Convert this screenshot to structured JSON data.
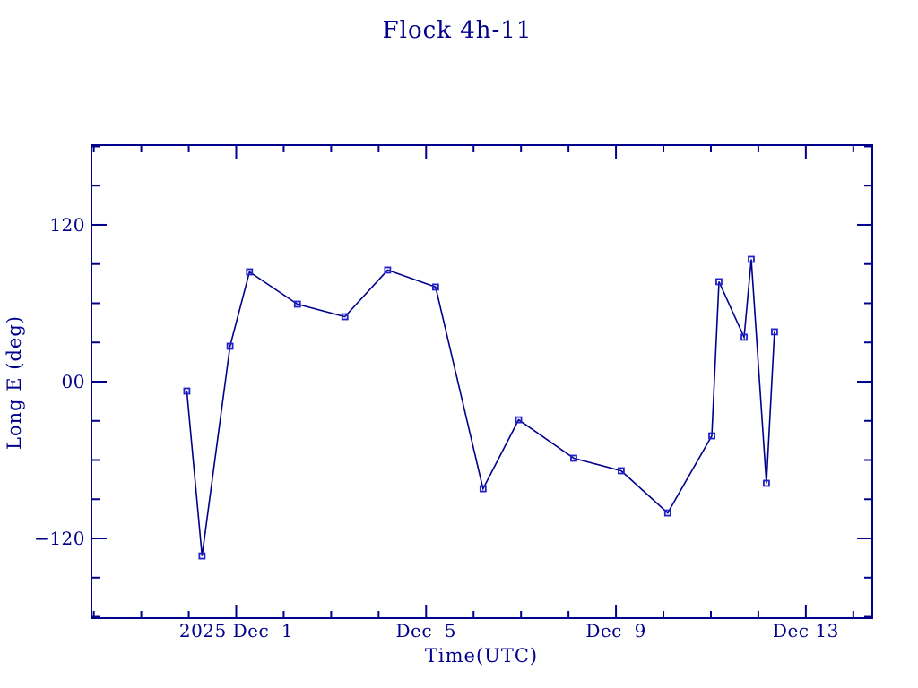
{
  "page": {
    "background": "#ffffff"
  },
  "colors": {
    "frame": "#00008B",
    "text": "#00008B",
    "line": "#00008B",
    "marker": "#2222CC"
  },
  "chart_data": {
    "type": "line",
    "title": "Flock 4h-11",
    "xlabel": "Time(UTC)",
    "ylabel": "Long E (deg)",
    "x_units": "days since 2025 Dec 1 00:00 (UTC)",
    "y_units": "degrees longitude East",
    "points": [
      {
        "x": -1.04,
        "y": -7.2
      },
      {
        "x": -0.72,
        "y": -133.4
      },
      {
        "x": -0.13,
        "y": 27.1
      },
      {
        "x": 0.28,
        "y": 84.0
      },
      {
        "x": 1.29,
        "y": 59.3
      },
      {
        "x": 2.29,
        "y": 49.7
      },
      {
        "x": 3.19,
        "y": 85.4
      },
      {
        "x": 4.2,
        "y": 72.4
      },
      {
        "x": 5.2,
        "y": -82.0
      },
      {
        "x": 5.95,
        "y": -29.2
      },
      {
        "x": 7.11,
        "y": -58.6
      },
      {
        "x": 8.11,
        "y": -68.2
      },
      {
        "x": 9.09,
        "y": -100.5
      },
      {
        "x": 10.02,
        "y": -41.5
      },
      {
        "x": 10.17,
        "y": 76.5
      },
      {
        "x": 10.7,
        "y": 34.0
      },
      {
        "x": 10.85,
        "y": 93.6
      },
      {
        "x": 11.17,
        "y": -77.8
      },
      {
        "x": 11.34,
        "y": 38.1
      }
    ],
    "xlim": [
      -3.05,
      13.4
    ],
    "ylim": [
      -181,
      181
    ],
    "x_major_ticks": [
      {
        "value": 0,
        "label": "2025 Dec  1"
      },
      {
        "value": 4,
        "label": "Dec  5"
      },
      {
        "value": 8,
        "label": "Dec  9"
      },
      {
        "value": 12,
        "label": "Dec 13"
      }
    ],
    "x_minor_tick_step": 1,
    "y_major_ticks": [
      {
        "value": 120,
        "label": "120"
      },
      {
        "value": 0,
        "label": "00"
      },
      {
        "value": -120,
        "label": "-120"
      }
    ],
    "y_minor_tick_step": 30,
    "grid": false,
    "legend": null,
    "marker": "open-square"
  }
}
